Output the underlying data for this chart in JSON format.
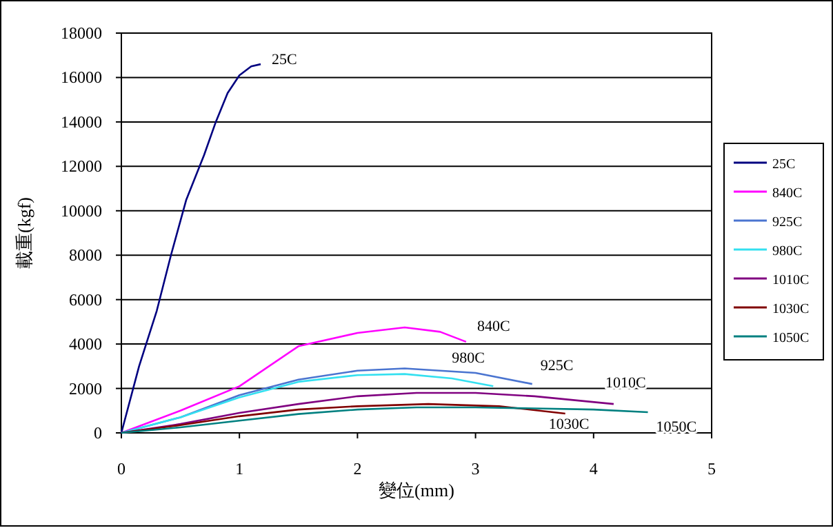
{
  "chart_data": {
    "type": "line",
    "xlabel": "變位(mm)",
    "ylabel": "載重(kgf)",
    "xlim": [
      0,
      5
    ],
    "xticks": [
      0,
      1,
      2,
      3,
      4,
      5
    ],
    "ylim": [
      0,
      18000
    ],
    "yticks": [
      0,
      2000,
      4000,
      6000,
      8000,
      10000,
      12000,
      14000,
      16000,
      18000
    ],
    "grid": "y",
    "legend": "right",
    "marker": "none",
    "line_style": "solid",
    "series": [
      {
        "name": "25C",
        "color": "#000080",
        "x": [
          0,
          0.15,
          0.3,
          0.42,
          0.55,
          0.7,
          0.8,
          0.9,
          1.0,
          1.1,
          1.18
        ],
        "values": [
          0,
          3000,
          5500,
          8000,
          10500,
          12500,
          14000,
          15300,
          16100,
          16500,
          16600
        ]
      },
      {
        "name": "840C",
        "color": "#ff00ff",
        "x": [
          0,
          0.5,
          1,
          1.5,
          2,
          2.4,
          2.7,
          2.92
        ],
        "values": [
          0,
          1000,
          2100,
          3900,
          4500,
          4750,
          4550,
          4100
        ]
      },
      {
        "name": "925C",
        "color": "#4a74d0",
        "x": [
          0,
          0.5,
          1,
          1.5,
          2,
          2.4,
          3,
          3.48
        ],
        "values": [
          0,
          700,
          1700,
          2400,
          2800,
          2900,
          2700,
          2200
        ]
      },
      {
        "name": "980C",
        "color": "#33e0f0",
        "x": [
          0,
          0.5,
          1,
          1.5,
          2,
          2.4,
          2.8,
          3.15
        ],
        "values": [
          0,
          700,
          1600,
          2300,
          2600,
          2650,
          2450,
          2100
        ]
      },
      {
        "name": "1010C",
        "color": "#800080",
        "x": [
          0,
          0.5,
          1,
          1.5,
          2,
          2.5,
          3,
          3.5,
          4.17
        ],
        "values": [
          0,
          400,
          900,
          1300,
          1650,
          1800,
          1800,
          1650,
          1300
        ]
      },
      {
        "name": "1030C",
        "color": "#800000",
        "x": [
          0,
          0.5,
          1,
          1.5,
          2,
          2.6,
          3.2,
          3.76
        ],
        "values": [
          0,
          350,
          750,
          1050,
          1200,
          1300,
          1200,
          870
        ]
      },
      {
        "name": "1050C",
        "color": "#008080",
        "x": [
          0,
          0.5,
          1,
          1.5,
          2,
          2.5,
          3,
          3.5,
          4,
          4.46
        ],
        "values": [
          0,
          250,
          550,
          850,
          1050,
          1150,
          1150,
          1100,
          1050,
          930
        ]
      }
    ]
  }
}
